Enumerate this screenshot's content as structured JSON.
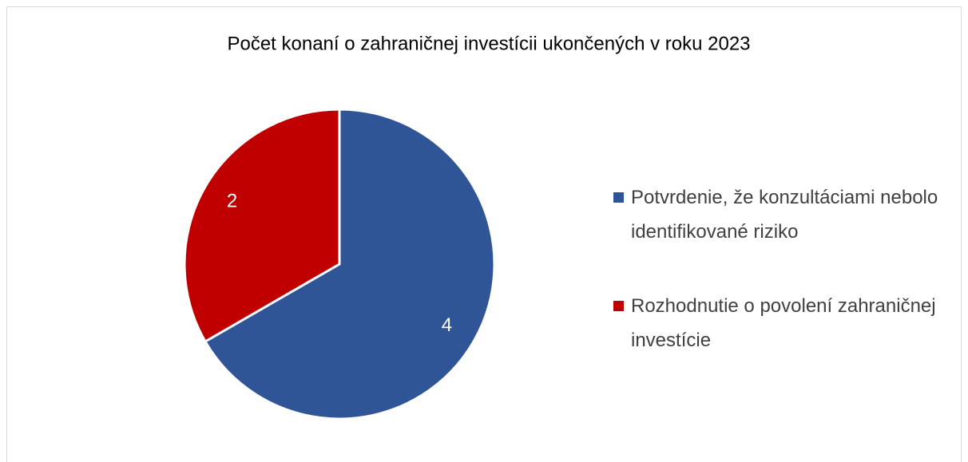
{
  "chart_data": {
    "type": "pie",
    "title": "Počet konaní o zahraničnej investícii ukončených v roku 2023",
    "categories": [
      "Potvrdenie, že konzultáciami nebolo identifikované riziko",
      "Rozhodnutie o povolení zahraničnej investície"
    ],
    "values": [
      4,
      2
    ],
    "colors": [
      "#2f5597",
      "#c00000"
    ],
    "legend": "right"
  }
}
